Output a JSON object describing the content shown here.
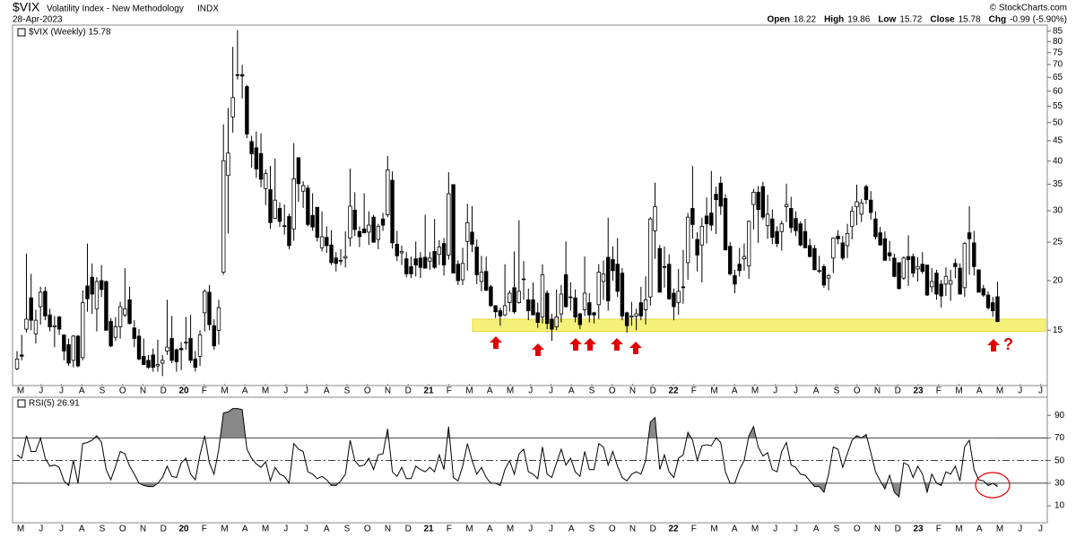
{
  "header": {
    "symbol": "$VIX",
    "name": "Volatility Index - New Methodology",
    "exchange": "INDX",
    "date": "28-Apr-2023",
    "copyright": "© StockCharts.com",
    "quote": [
      {
        "label": "Open",
        "value": "18.22"
      },
      {
        "label": "High",
        "value": "19.86"
      },
      {
        "label": "Low",
        "value": "15.72"
      },
      {
        "label": "Close",
        "value": "15.78"
      },
      {
        "label": "Chg",
        "value": "-0.99 (-5.90%)"
      }
    ]
  },
  "months": [
    "M",
    "J",
    "J",
    "A",
    "S",
    "O",
    "N",
    "D",
    "20",
    "F",
    "M",
    "A",
    "M",
    "J",
    "J",
    "A",
    "S",
    "O",
    "N",
    "D",
    "21",
    "F",
    "M",
    "A",
    "M",
    "J",
    "J",
    "A",
    "S",
    "O",
    "N",
    "D",
    "22",
    "F",
    "M",
    "A",
    "M",
    "J",
    "J",
    "A",
    "S",
    "O",
    "N",
    "D",
    "23",
    "F",
    "M",
    "A",
    "M",
    "J",
    "J"
  ],
  "chart_data": [
    {
      "type": "candlestick",
      "legend": "$VIX (Weekly) 15.78",
      "log_scale": true,
      "ylim": [
        11,
        88
      ],
      "yticks": [
        15,
        20,
        25,
        30,
        35,
        40,
        45,
        50,
        55,
        60,
        65,
        70,
        75,
        80,
        85
      ],
      "up_color": "#ffffff",
      "down_color": "#000000",
      "highlight_band": {
        "ylim": [
          14.9,
          16.0
        ],
        "color": "#f5f07a"
      },
      "annotation": "?",
      "open": [
        12.0,
        13.0,
        15.1,
        18.1,
        14.7,
        17.2,
        18.8,
        16.4,
        15.3,
        16.2,
        14.6,
        13.8,
        12.6,
        14.5,
        12.8,
        19.4,
        20.4,
        17.0,
        20.0,
        19.9,
        15.8,
        14.4,
        15.3,
        16.4,
        17.9,
        15.2,
        14.5,
        12.9,
        12.6,
        13.0,
        12.2,
        12.4,
        13.3,
        14.3,
        13.4,
        13.5,
        14.0,
        14.3,
        12.7,
        12.9,
        16.6,
        18.7,
        15.4,
        15.0,
        21.0,
        36.8,
        51.7,
        66.0,
        66.0,
        61.6,
        44.8,
        43.2,
        41.8,
        34.1,
        33.9,
        28.7,
        30.4,
        27.4,
        29.0,
        27.0,
        40.8,
        33.6,
        34.2,
        29.2,
        30.6,
        24.2,
        25.7,
        24.6,
        22.8,
        22.4,
        22.8,
        25.6,
        30.1,
        26.6,
        27.0,
        26.5,
        28.9,
        25.4,
        28.6,
        29.3,
        35.8,
        24.7,
        23.5,
        22.7,
        21.7,
        22.7,
        22.8,
        22.9,
        22.4,
        23.7,
        23.3,
        24.8,
        23.2,
        34.9,
        22.0,
        20.1,
        25.1,
        26.5,
        24.3,
        19.9,
        21.1,
        19.3,
        17.3,
        16.8,
        16.4,
        17.6,
        19.2,
        17.6,
        20.2,
        17.9,
        17.9,
        16.6,
        16.2,
        18.6,
        16.0,
        15.3,
        16.5,
        20.7,
        18.2,
        18.1,
        16.5,
        16.9,
        17.6,
        16.6,
        17.4,
        19.9,
        22.9,
        22.6,
        22.0,
        20.9,
        16.6,
        16.2,
        16.3,
        17.6,
        16.9,
        18.2,
        26.7,
        24.1,
        21.7,
        22.0,
        18.6,
        17.6,
        19.3,
        22.2,
        30.4,
        25.4,
        24.6,
        29.1,
        29.6,
        33.0,
        35.2,
        32.2,
        24.4,
        20.6,
        22.0,
        22.7,
        21.8,
        31.1,
        33.4,
        34.5,
        27.5,
        28.6,
        26.6,
        26.6,
        30.7,
        30.4,
        28.7,
        27.8,
        26.6,
        24.5,
        24.1,
        21.1,
        21.7,
        20.3,
        22.8,
        25.9,
        24.9,
        24.5,
        27.4,
        30.7,
        29.4,
        34.5,
        31.9,
        28.6,
        26.4,
        25.5,
        23.5,
        22.8,
        22.2,
        20.3,
        23.0,
        23.0,
        21.4,
        22.0,
        21.9,
        19.3,
        20.9,
        19.6,
        19.6,
        19.6,
        22.1,
        21.5,
        19.2,
        26.4,
        24.9,
        21.3,
        19.1,
        18.4,
        17.6,
        18.22
      ],
      "high": [
        13.3,
        14.6,
        23.4,
        20.8,
        16.9,
        19.3,
        19.3,
        17.0,
        16.3,
        16.3,
        14.6,
        14.3,
        14.6,
        14.6,
        18.9,
        24.8,
        22.1,
        20.4,
        21.9,
        20.0,
        16.1,
        16.2,
        17.7,
        21.5,
        19.3,
        15.9,
        15.1,
        14.3,
        13.0,
        13.5,
        14.2,
        13.0,
        17.9,
        16.3,
        13.5,
        14.0,
        16.2,
        16.4,
        13.3,
        15.0,
        19.0,
        19.5,
        16.0,
        17.9,
        49.5,
        54.4,
        77.6,
        85.5,
        69.9,
        62.2,
        46.3,
        47.5,
        47.0,
        38.1,
        38.9,
        40.6,
        31.5,
        31.1,
        29.5,
        44.4,
        40.8,
        35.6,
        34.8,
        33.2,
        30.6,
        29.9,
        27.4,
        26.8,
        23.6,
        24.0,
        26.6,
        38.3,
        33.4,
        27.4,
        33.2,
        29.9,
        29.3,
        27.8,
        29.6,
        41.2,
        37.7,
        26.7,
        24.5,
        23.6,
        23.0,
        25.1,
        23.6,
        29.3,
        23.6,
        28.6,
        25.3,
        25.6,
        37.5,
        35.0,
        22.5,
        24.2,
        31.2,
        30.8,
        25.4,
        23.1,
        23.0,
        19.5,
        17.3,
        17.1,
        22.0,
        18.9,
        23.7,
        28.4,
        22.4,
        19.1,
        19.8,
        17.6,
        22.0,
        18.9,
        16.5,
        19.0,
        19.5,
        25.1,
        19.8,
        19.0,
        16.6,
        23.0,
        18.6,
        16.7,
        22.0,
        22.5,
        28.8,
        24.4,
        25.6,
        21.5,
        16.7,
        17.7,
        17.0,
        19.3,
        20.5,
        28.9,
        35.3,
        24.6,
        24.4,
        23.3,
        19.1,
        21.4,
        23.9,
        29.6,
        38.9,
        26.5,
        28.8,
        32.4,
        37.8,
        34.5,
        36.6,
        33.0,
        25.0,
        21.3,
        24.2,
        24.8,
        28.4,
        34.0,
        34.6,
        35.5,
        32.9,
        30.2,
        27.4,
        28.3,
        35.1,
        32.5,
        29.9,
        28.2,
        28.6,
        25.5,
        24.6,
        23.1,
        22.0,
        20.8,
        25.7,
        26.8,
        25.9,
        27.8,
        30.8,
        34.9,
        32.1,
        34.9,
        33.6,
        29.9,
        27.3,
        26.6,
        25.2,
        23.4,
        22.2,
        23.0,
        26.0,
        23.4,
        22.9,
        23.6,
        21.9,
        21.5,
        21.3,
        20.1,
        21.6,
        21.3,
        22.7,
        22.1,
        25.0,
        30.8,
        26.7,
        21.3,
        19.5,
        18.8,
        18.2,
        19.86
      ],
      "low": [
        11.9,
        12.6,
        14.8,
        15.0,
        13.9,
        15.5,
        15.9,
        14.9,
        13.6,
        14.6,
        12.6,
        12.2,
        12.1,
        12.1,
        12.6,
        16.7,
        16.5,
        14.9,
        18.2,
        15.0,
        13.6,
        14.1,
        14.3,
        16.2,
        15.5,
        13.6,
        12.6,
        12.3,
        12.0,
        11.8,
        11.8,
        11.5,
        13.0,
        12.4,
        11.8,
        11.9,
        13.4,
        12.4,
        11.8,
        12.2,
        14.9,
        15.0,
        13.4,
        13.8,
        20.7,
        26.3,
        47.2,
        64.2,
        57.5,
        45.7,
        38.5,
        36.3,
        34.4,
        31.0,
        27.0,
        28.6,
        27.3,
        26.1,
        24.0,
        25.2,
        31.6,
        30.5,
        27.4,
        26.7,
        25.1,
        23.7,
        23.5,
        21.9,
        21.1,
        21.9,
        21.6,
        24.4,
        25.9,
        24.3,
        26.3,
        24.6,
        24.9,
        24.0,
        26.7,
        28.9,
        24.1,
        22.4,
        21.9,
        20.4,
        20.3,
        20.5,
        20.3,
        21.5,
        21.3,
        21.4,
        21.9,
        20.6,
        22.6,
        20.9,
        19.5,
        19.5,
        21.2,
        23.6,
        19.6,
        18.8,
        18.9,
        17.2,
        16.1,
        15.4,
        16.3,
        16.7,
        16.5,
        17.5,
        17.9,
        15.9,
        16.4,
        15.2,
        15.6,
        15.1,
        14.1,
        15.0,
        15.7,
        17.1,
        16.8,
        15.7,
        15.1,
        16.3,
        15.7,
        15.6,
        16.0,
        17.9,
        16.8,
        20.0,
        18.2,
        15.9,
        14.8,
        15.4,
        15.0,
        15.9,
        15.5,
        17.3,
        22.7,
        18.7,
        19.2,
        17.9,
        15.9,
        16.4,
        17.5,
        20.1,
        25.5,
        21.1,
        19.8,
        24.8,
        26.7,
        26.2,
        29.3,
        23.9,
        20.6,
        18.6,
        20.5,
        21.2,
        20.2,
        26.9,
        24.9,
        28.5,
        25.5,
        24.7,
        24.3,
        23.8,
        28.1,
        26.4,
        25.9,
        24.4,
        24.2,
        22.9,
        21.3,
        20.9,
        19.2,
        18.9,
        20.9,
        24.7,
        22.5,
        22.8,
        25.4,
        27.6,
        28.1,
        31.2,
        28.5,
        25.4,
        24.5,
        22.5,
        22.4,
        20.4,
        19.0,
        20.1,
        19.4,
        20.4,
        19.9,
        20.8,
        18.3,
        18.7,
        17.9,
        17.1,
        18.3,
        17.8,
        20.3,
        18.5,
        18.2,
        20.7,
        20.6,
        18.7,
        18.2,
        16.9,
        16.2,
        15.72
      ],
      "close": [
        12.7,
        12.9,
        16.0,
        15.9,
        15.9,
        18.7,
        16.3,
        15.3,
        15.4,
        15.1,
        13.3,
        12.4,
        14.5,
        12.2,
        17.6,
        18.0,
        18.5,
        19.9,
        19.0,
        15.0,
        13.7,
        15.3,
        17.2,
        17.0,
        15.6,
        14.3,
        12.7,
        12.3,
        12.1,
        12.1,
        12.3,
        12.6,
        13.6,
        12.6,
        12.5,
        13.4,
        14.0,
        12.6,
        12.1,
        14.6,
        18.8,
        15.5,
        13.7,
        17.1,
        40.1,
        41.9,
        57.8,
        66.0,
        65.5,
        46.8,
        41.7,
        38.2,
        36.0,
        37.2,
        28.0,
        31.9,
        28.2,
        27.5,
        24.5,
        36.1,
        35.1,
        34.7,
        27.7,
        27.3,
        25.7,
        25.8,
        24.5,
        22.2,
        22.1,
        22.5,
        23.0,
        30.8,
        26.9,
        25.8,
        26.4,
        27.6,
        25.0,
        27.4,
        27.6,
        38.0,
        24.9,
        23.1,
        23.7,
        20.8,
        20.8,
        21.9,
        21.6,
        21.5,
        22.8,
        21.6,
        24.3,
        21.9,
        33.1,
        20.9,
        20.0,
        22.1,
        28.0,
        24.7,
        20.7,
        21.0,
        18.9,
        17.3,
        16.7,
        16.3,
        17.3,
        18.6,
        16.7,
        18.8,
        20.2,
        16.8,
        16.4,
        15.7,
        20.7,
        15.6,
        15.1,
        16.2,
        18.5,
        17.2,
        18.2,
        16.2,
        15.5,
        18.6,
        16.4,
        16.4,
        21.0,
        20.8,
        17.8,
        21.2,
        18.8,
        16.3,
        15.4,
        16.3,
        16.5,
        16.3,
        17.9,
        28.6,
        30.7,
        18.7,
        21.6,
        18.0,
        17.2,
        18.8,
        19.2,
        28.9,
        27.7,
        23.2,
        27.4,
        27.8,
        27.6,
        32.0,
        30.8,
        23.9,
        20.8,
        19.6,
        21.2,
        23.0,
        28.2,
        33.4,
        30.2,
        28.9,
        29.4,
        25.7,
        24.8,
        27.8,
        31.1,
        27.2,
        26.7,
        24.6,
        24.2,
        23.0,
        21.3,
        21.2,
        19.5,
        20.6,
        25.6,
        25.5,
        22.8,
        26.3,
        29.9,
        31.6,
        31.4,
        32.0,
        29.7,
        25.8,
        24.6,
        22.5,
        23.1,
        20.5,
        19.1,
        22.8,
        22.6,
        20.9,
        21.7,
        21.1,
        18.4,
        19.9,
        18.5,
        18.3,
        20.5,
        20.0,
        21.7,
        18.5,
        24.8,
        25.5,
        21.7,
        18.7,
        18.4,
        17.1,
        16.8,
        15.78
      ]
    },
    {
      "type": "line",
      "legend": "RSI(5) 26.91",
      "color": "#000000",
      "ylim": [
        -5,
        106
      ],
      "yticks": [
        10,
        30,
        50,
        70,
        90
      ],
      "overbought": 70,
      "midline": 50,
      "oversold": 30,
      "zone_color": "#888888",
      "values": [
        55,
        52,
        72,
        58,
        58,
        70,
        52,
        45,
        46,
        44,
        32,
        28,
        50,
        30,
        65,
        66,
        68,
        72,
        66,
        42,
        33,
        45,
        58,
        56,
        45,
        38,
        30,
        28,
        27,
        27,
        30,
        35,
        45,
        36,
        35,
        48,
        52,
        38,
        33,
        55,
        72,
        48,
        38,
        60,
        92,
        93,
        96,
        96,
        95,
        60,
        52,
        47,
        44,
        49,
        32,
        44,
        38,
        36,
        30,
        65,
        60,
        58,
        40,
        38,
        34,
        36,
        33,
        28,
        28,
        32,
        38,
        68,
        50,
        45,
        46,
        52,
        42,
        55,
        56,
        78,
        40,
        36,
        44,
        34,
        34,
        45,
        42,
        40,
        44,
        40,
        55,
        42,
        80,
        35,
        32,
        45,
        65,
        50,
        38,
        44,
        35,
        30,
        30,
        28,
        42,
        50,
        38,
        56,
        60,
        40,
        38,
        34,
        62,
        38,
        35,
        48,
        60,
        46,
        52,
        40,
        36,
        58,
        42,
        42,
        65,
        62,
        46,
        58,
        45,
        35,
        32,
        38,
        40,
        38,
        50,
        84,
        88,
        42,
        55,
        40,
        35,
        52,
        55,
        75,
        68,
        50,
        63,
        64,
        63,
        70,
        66,
        40,
        30,
        30,
        42,
        50,
        72,
        80,
        62,
        54,
        57,
        42,
        40,
        58,
        66,
        46,
        44,
        38,
        37,
        32,
        27,
        27,
        22,
        38,
        62,
        60,
        44,
        56,
        68,
        72,
        70,
        73,
        57,
        40,
        32,
        25,
        37,
        22,
        18,
        48,
        46,
        35,
        45,
        38,
        22,
        38,
        30,
        28,
        40,
        38,
        45,
        32,
        62,
        68,
        42,
        33,
        32,
        28,
        30,
        26.91
      ]
    }
  ]
}
